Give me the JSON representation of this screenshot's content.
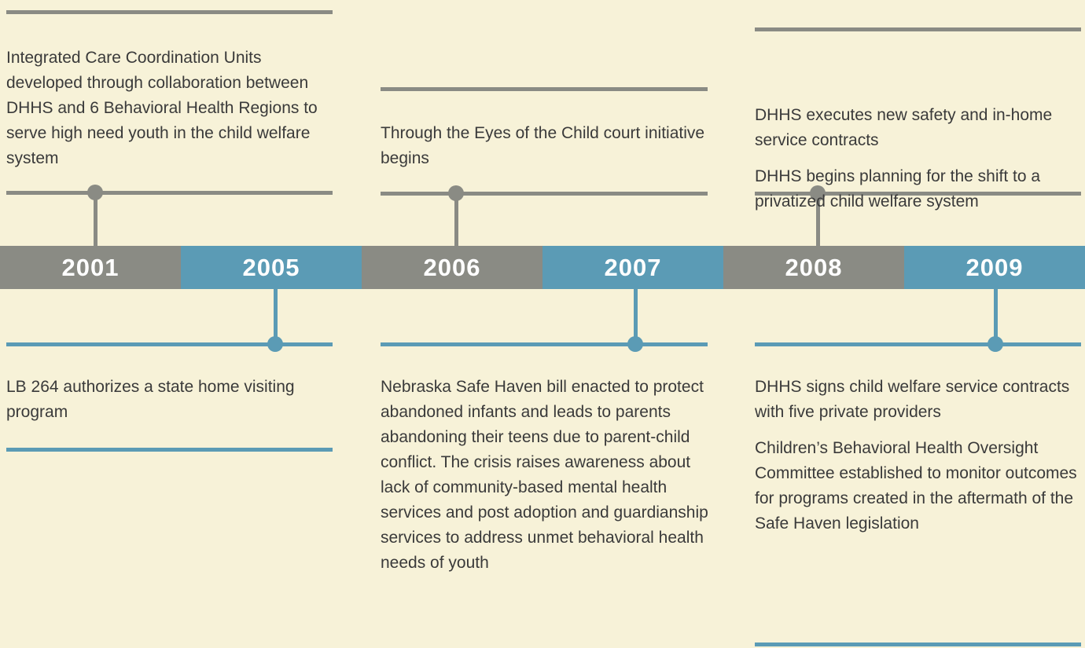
{
  "years": [
    "2001",
    "2005",
    "2006",
    "2007",
    "2008",
    "2009"
  ],
  "events": [
    {
      "paragraphs": [
        "Integrated Care Coordination Units developed through collaboration between DHHS and 6 Behavioral Health Regions to serve high need youth in the child welfare system"
      ]
    },
    {
      "paragraphs": [
        "LB 264 authorizes a state home visiting program"
      ]
    },
    {
      "paragraphs": [
        "Through the Eyes of the Child court initiative begins"
      ]
    },
    {
      "paragraphs": [
        "Nebraska Safe Haven bill enacted to protect abandoned infants and leads to parents abandoning their teens due to parent-child conflict. The crisis raises awareness about lack of community-based mental health services and post adoption and guardianship services to address unmet behavioral health needs of youth"
      ]
    },
    {
      "paragraphs": [
        "DHHS executes new safety and in-home service contracts",
        "DHHS begins planning for the shift to a privatized child welfare system"
      ]
    },
    {
      "paragraphs": [
        "DHHS signs child welfare service contracts with five private providers",
        "Children’s Behavioral Health Oversight Committee established to monitor outcomes for programs created in the aftermath of the Safe Haven legislation"
      ]
    }
  ]
}
